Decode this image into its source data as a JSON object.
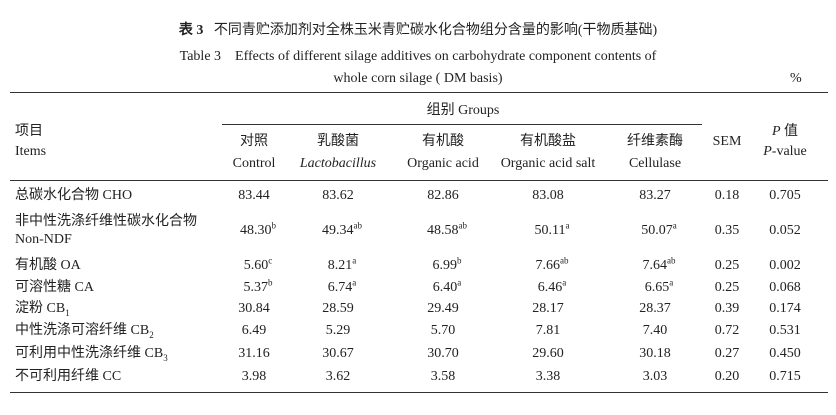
{
  "caption": {
    "label_cn": "表 3",
    "title_cn": "不同青贮添加剂对全株玉米青贮碳水化合物组分含量的影响(干物质基础)",
    "label_en": "Table 3",
    "title_en_line1": "Effects of different silage additives on carbohydrate component contents of",
    "title_en_line2": "whole corn silage ( DM basis)",
    "unit": "%"
  },
  "header": {
    "item_cn": "项目",
    "item_en": "Items",
    "group": "组别 Groups",
    "columns": [
      {
        "cn": "对照",
        "en": "Control"
      },
      {
        "cn": "乳酸菌",
        "en": "Lactobacillus"
      },
      {
        "cn": "有机酸",
        "en": "Organic acid"
      },
      {
        "cn": "有机酸盐",
        "en": "Organic acid salt"
      },
      {
        "cn": "纤维素酶",
        "en": "Cellulase"
      }
    ],
    "sem": "SEM",
    "p_symbol": "P",
    "p_cn": "值",
    "p_en": "-value"
  },
  "rows": [
    {
      "name": [
        "总碳水化合物 CHO"
      ],
      "cells": [
        {
          "v": "83.44"
        },
        {
          "v": "83.62"
        },
        {
          "v": "82.86"
        },
        {
          "v": "83.08"
        },
        {
          "v": "83.27"
        }
      ],
      "sem": "0.18",
      "p": "0.705"
    },
    {
      "name": [
        "非中性洗涤纤维性碳水化合物",
        "Non-NDF"
      ],
      "cells": [
        {
          "v": "48.30",
          "sup": "b"
        },
        {
          "v": "49.34",
          "sup": "ab"
        },
        {
          "v": "48.58",
          "sup": "ab"
        },
        {
          "v": "50.11",
          "sup": "a"
        },
        {
          "v": "50.07",
          "sup": "a"
        }
      ],
      "sem": "0.35",
      "p": "0.052"
    },
    {
      "name": [
        "有机酸 OA"
      ],
      "cells": [
        {
          "v": "5.60",
          "sup": "c"
        },
        {
          "v": "8.21",
          "sup": "a"
        },
        {
          "v": "6.99",
          "sup": "b"
        },
        {
          "v": "7.66",
          "sup": "ab"
        },
        {
          "v": "7.64",
          "sup": "ab"
        }
      ],
      "sem": "0.25",
      "p": "0.002"
    },
    {
      "name": [
        "可溶性糖 CA"
      ],
      "cells": [
        {
          "v": "5.37",
          "sup": "b"
        },
        {
          "v": "6.74",
          "sup": "a"
        },
        {
          "v": "6.40",
          "sup": "a"
        },
        {
          "v": "6.46",
          "sup": "a"
        },
        {
          "v": "6.65",
          "sup": "a"
        }
      ],
      "sem": "0.25",
      "p": "0.068"
    },
    {
      "name": [
        "淀粉 CB"
      ],
      "sub": "1",
      "cells": [
        {
          "v": "30.84"
        },
        {
          "v": "28.59"
        },
        {
          "v": "29.49"
        },
        {
          "v": "28.17"
        },
        {
          "v": "28.37"
        }
      ],
      "sem": "0.39",
      "p": "0.174"
    },
    {
      "name": [
        "中性洗涤可溶纤维 CB"
      ],
      "sub": "2",
      "cells": [
        {
          "v": "6.49"
        },
        {
          "v": "5.29"
        },
        {
          "v": "5.70"
        },
        {
          "v": "7.81"
        },
        {
          "v": "7.40"
        }
      ],
      "sem": "0.72",
      "p": "0.531"
    },
    {
      "name": [
        "可利用中性洗涤纤维 CB"
      ],
      "sub": "3",
      "cells": [
        {
          "v": "31.16"
        },
        {
          "v": "30.67"
        },
        {
          "v": "30.70"
        },
        {
          "v": "29.60"
        },
        {
          "v": "30.18"
        }
      ],
      "sem": "0.27",
      "p": "0.450"
    },
    {
      "name": [
        "不可利用纤维 CC"
      ],
      "cells": [
        {
          "v": "3.98"
        },
        {
          "v": "3.62"
        },
        {
          "v": "3.58"
        },
        {
          "v": "3.38"
        },
        {
          "v": "3.03"
        }
      ],
      "sem": "0.20",
      "p": "0.715"
    }
  ]
}
